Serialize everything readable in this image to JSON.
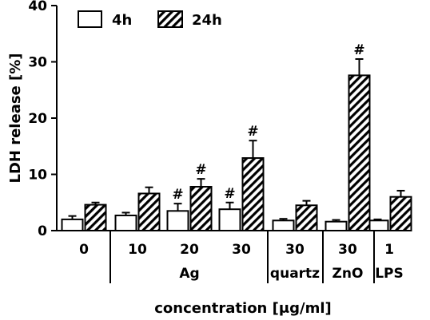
{
  "chart_data": {
    "type": "bar",
    "ylabel": "LDH release [%]",
    "xlabel": "concentration [μg/ml]",
    "ylim": [
      0,
      40
    ],
    "yticks": [
      0,
      10,
      20,
      30,
      40
    ],
    "legend": {
      "placement": "top-left"
    },
    "categories": [
      "0",
      "10",
      "20",
      "30",
      "30",
      "30",
      "1"
    ],
    "groups": [
      {
        "label": "",
        "start": 0,
        "end": 0
      },
      {
        "label": "Ag",
        "start": 1,
        "end": 3
      },
      {
        "label": "quartz",
        "start": 4,
        "end": 4
      },
      {
        "label": "ZnO",
        "start": 5,
        "end": 5
      },
      {
        "label": "LPS",
        "start": 6,
        "end": 6
      }
    ],
    "series": [
      {
        "name": "4h",
        "pattern": "open",
        "values": [
          2.0,
          2.7,
          3.5,
          3.8,
          1.8,
          1.6,
          1.8
        ],
        "errors": [
          0.6,
          0.5,
          1.3,
          1.2,
          0.3,
          0.3,
          0.2
        ],
        "annotations": [
          "",
          "",
          "#",
          "#",
          "",
          "",
          ""
        ]
      },
      {
        "name": "24h",
        "pattern": "hatched",
        "values": [
          4.6,
          6.6,
          7.8,
          12.9,
          4.5,
          27.6,
          6.0
        ],
        "errors": [
          0.4,
          1.1,
          1.4,
          3.1,
          0.8,
          2.9,
          1.1
        ],
        "annotations": [
          "",
          "",
          "#",
          "#",
          "",
          "#",
          ""
        ]
      }
    ]
  }
}
